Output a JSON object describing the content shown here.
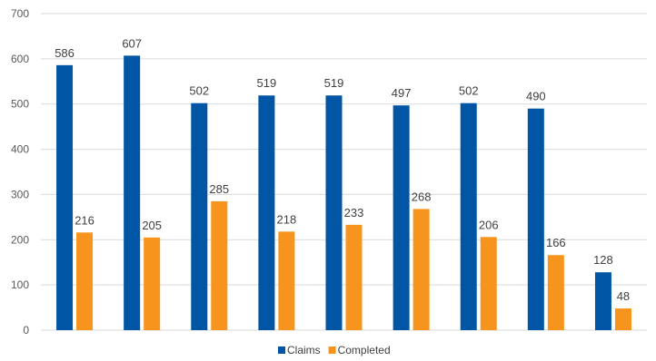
{
  "chart_data": {
    "type": "bar",
    "categories": [
      "",
      "",
      "",
      "",
      "",
      "",
      "",
      "",
      ""
    ],
    "series": [
      {
        "name": "Claims",
        "color": "#0055a5",
        "values": [
          586,
          607,
          502,
          519,
          519,
          497,
          502,
          490,
          128
        ]
      },
      {
        "name": "Completed",
        "color": "#f7941d",
        "values": [
          216,
          205,
          285,
          218,
          233,
          268,
          206,
          166,
          48
        ]
      }
    ],
    "ylim": [
      0,
      700
    ],
    "yticks": [
      0,
      100,
      200,
      300,
      400,
      500,
      600,
      700
    ],
    "grid": true,
    "legend_position": "bottom",
    "data_labels": true
  }
}
